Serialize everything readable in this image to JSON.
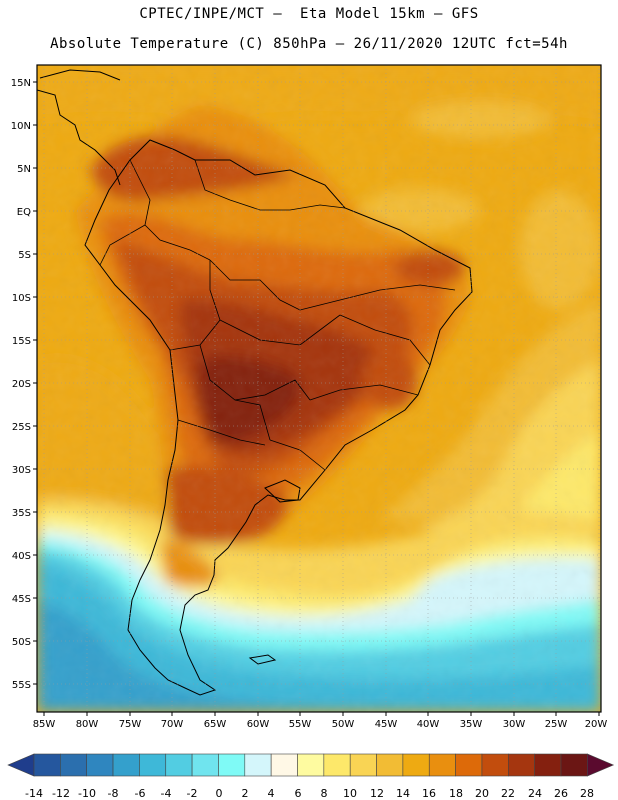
{
  "header": {
    "line1": "CPTEC/INPE/MCT –  Eta Model 15km – GFS",
    "line2": "Absolute Temperature (C) 850hPa – 26/11/2020 12UTC fct=54h"
  },
  "map": {
    "lat_labels": [
      "15N",
      "10N",
      "5N",
      "EQ",
      "5S",
      "10S",
      "15S",
      "20S",
      "25S",
      "30S",
      "35S",
      "40S",
      "45S",
      "50S",
      "55S"
    ],
    "lon_labels": [
      "85W",
      "80W",
      "75W",
      "70W",
      "65W",
      "60W",
      "55W",
      "50W",
      "45W",
      "40W",
      "35W",
      "30W",
      "25W",
      "20W"
    ]
  },
  "colorbar": {
    "labels": [
      "-14",
      "-12",
      "-10",
      "-8",
      "-6",
      "-4",
      "-2",
      "0",
      "2",
      "4",
      "6",
      "8",
      "10",
      "12",
      "14",
      "16",
      "18",
      "20",
      "22",
      "24",
      "26",
      "28"
    ],
    "colors": [
      "#1f3d8c",
      "#25579e",
      "#2b6fae",
      "#2f86bf",
      "#34a0cc",
      "#3eb8d8",
      "#52cde2",
      "#70e4ee",
      "#7ffaf6",
      "#d4f6fb",
      "#fff8e6",
      "#fefba0",
      "#fde86a",
      "#f9d454",
      "#f2bc34",
      "#eeaa12",
      "#e98f0f",
      "#dd6a09",
      "#c24d0d",
      "#a5360f",
      "#84200f",
      "#6b1614",
      "#5a0a2e"
    ]
  }
}
